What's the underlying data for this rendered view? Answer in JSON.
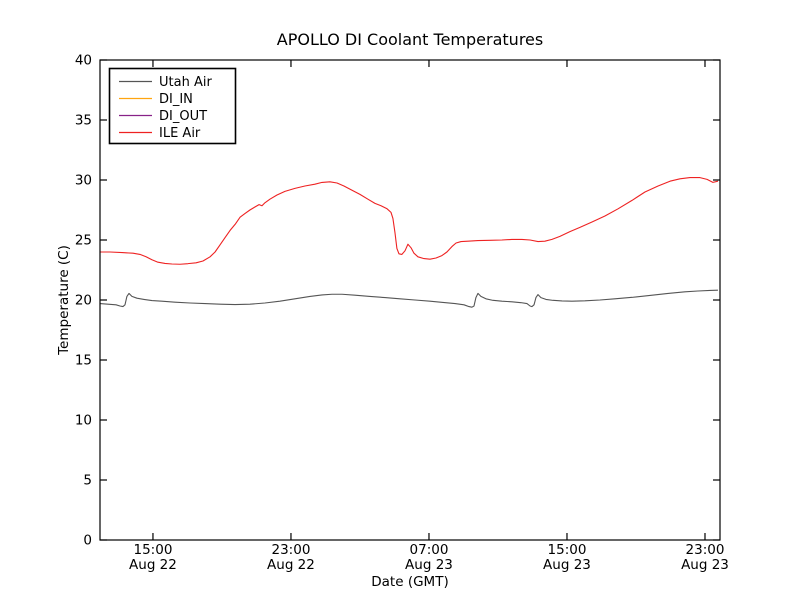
{
  "chart_data": {
    "type": "line",
    "title": "APOLLO DI Coolant Temperatures",
    "xlabel": "Date (GMT)",
    "ylabel": "Temperature (C)",
    "ylim": [
      0,
      40
    ],
    "xlim_hours_from_aug22_0000": [
      11.93,
      47.87
    ],
    "grid": false,
    "yticks": [
      0,
      5,
      10,
      15,
      20,
      25,
      30,
      35,
      40
    ],
    "xticks": [
      {
        "hour": 15,
        "time": "15:00",
        "date": "Aug 22"
      },
      {
        "hour": 23,
        "time": "23:00",
        "date": "Aug 22"
      },
      {
        "hour": 31,
        "time": "07:00",
        "date": "Aug 23"
      },
      {
        "hour": 39,
        "time": "15:00",
        "date": "Aug 23"
      },
      {
        "hour": 47,
        "time": "23:00",
        "date": "Aug 23"
      }
    ],
    "legend": {
      "position": "upper-left",
      "entries": [
        {
          "name": "Utah Air",
          "color": "#555555"
        },
        {
          "name": "DI_IN",
          "color": "#ffa510"
        },
        {
          "name": "DI_OUT",
          "color": "#882288"
        },
        {
          "name": "ILE Air",
          "color": "#ee2222"
        }
      ]
    },
    "series": [
      {
        "name": "Utah Air",
        "color": "#555555",
        "points": [
          [
            11.93,
            19.7
          ],
          [
            12.39,
            19.65
          ],
          [
            12.86,
            19.6
          ],
          [
            13.09,
            19.5
          ],
          [
            13.26,
            19.45
          ],
          [
            13.38,
            19.6
          ],
          [
            13.49,
            20.3
          ],
          [
            13.61,
            20.55
          ],
          [
            13.78,
            20.3
          ],
          [
            14.07,
            20.15
          ],
          [
            14.48,
            20.05
          ],
          [
            14.94,
            19.95
          ],
          [
            15.52,
            19.9
          ],
          [
            16.28,
            19.82
          ],
          [
            17.15,
            19.75
          ],
          [
            18.01,
            19.7
          ],
          [
            18.89,
            19.65
          ],
          [
            19.76,
            19.62
          ],
          [
            20.62,
            19.65
          ],
          [
            21.49,
            19.75
          ],
          [
            22.36,
            19.9
          ],
          [
            23.23,
            20.1
          ],
          [
            24.1,
            20.3
          ],
          [
            24.8,
            20.42
          ],
          [
            25.38,
            20.48
          ],
          [
            25.96,
            20.48
          ],
          [
            26.71,
            20.4
          ],
          [
            27.58,
            20.3
          ],
          [
            28.45,
            20.2
          ],
          [
            29.32,
            20.1
          ],
          [
            30.19,
            20.0
          ],
          [
            31.06,
            19.9
          ],
          [
            31.81,
            19.8
          ],
          [
            32.51,
            19.7
          ],
          [
            33.03,
            19.6
          ],
          [
            33.32,
            19.45
          ],
          [
            33.49,
            19.4
          ],
          [
            33.61,
            19.5
          ],
          [
            33.72,
            20.2
          ],
          [
            33.84,
            20.55
          ],
          [
            34.01,
            20.3
          ],
          [
            34.3,
            20.1
          ],
          [
            34.71,
            19.97
          ],
          [
            35.23,
            19.9
          ],
          [
            35.81,
            19.85
          ],
          [
            36.33,
            19.78
          ],
          [
            36.68,
            19.7
          ],
          [
            36.86,
            19.5
          ],
          [
            36.97,
            19.45
          ],
          [
            37.09,
            19.6
          ],
          [
            37.2,
            20.2
          ],
          [
            37.32,
            20.45
          ],
          [
            37.49,
            20.2
          ],
          [
            37.78,
            20.05
          ],
          [
            38.19,
            19.97
          ],
          [
            38.71,
            19.92
          ],
          [
            39.29,
            19.9
          ],
          [
            40.04,
            19.93
          ],
          [
            40.91,
            20.0
          ],
          [
            41.78,
            20.1
          ],
          [
            42.77,
            20.22
          ],
          [
            43.81,
            20.38
          ],
          [
            44.86,
            20.55
          ],
          [
            45.84,
            20.68
          ],
          [
            46.59,
            20.75
          ],
          [
            47.29,
            20.8
          ],
          [
            47.75,
            20.82
          ]
        ]
      },
      {
        "name": "DI_IN",
        "color": "#ffa510",
        "points": [
          [
            11.93,
            0
          ],
          [
            47.87,
            0
          ]
        ]
      },
      {
        "name": "DI_OUT",
        "color": "#882288",
        "points": [
          [
            11.93,
            0
          ],
          [
            47.87,
            0
          ]
        ]
      },
      {
        "name": "ILE Air",
        "color": "#ee2222",
        "points": [
          [
            11.93,
            24.0
          ],
          [
            12.51,
            24.0
          ],
          [
            13.21,
            23.95
          ],
          [
            13.84,
            23.9
          ],
          [
            14.25,
            23.8
          ],
          [
            14.6,
            23.6
          ],
          [
            14.94,
            23.35
          ],
          [
            15.29,
            23.15
          ],
          [
            15.7,
            23.05
          ],
          [
            16.1,
            23.0
          ],
          [
            16.57,
            22.98
          ],
          [
            17.03,
            23.03
          ],
          [
            17.5,
            23.1
          ],
          [
            17.9,
            23.25
          ],
          [
            18.31,
            23.6
          ],
          [
            18.6,
            24.0
          ],
          [
            18.89,
            24.6
          ],
          [
            19.18,
            25.2
          ],
          [
            19.47,
            25.8
          ],
          [
            19.76,
            26.3
          ],
          [
            20.05,
            26.9
          ],
          [
            20.33,
            27.2
          ],
          [
            20.62,
            27.5
          ],
          [
            20.91,
            27.75
          ],
          [
            21.15,
            27.95
          ],
          [
            21.32,
            27.85
          ],
          [
            21.49,
            28.1
          ],
          [
            21.78,
            28.4
          ],
          [
            22.19,
            28.75
          ],
          [
            22.65,
            29.05
          ],
          [
            23.23,
            29.3
          ],
          [
            23.81,
            29.5
          ],
          [
            24.39,
            29.65
          ],
          [
            24.8,
            29.8
          ],
          [
            25.26,
            29.85
          ],
          [
            25.67,
            29.75
          ],
          [
            26.07,
            29.5
          ],
          [
            26.54,
            29.15
          ],
          [
            27.0,
            28.8
          ],
          [
            27.46,
            28.4
          ],
          [
            27.87,
            28.05
          ],
          [
            28.22,
            27.85
          ],
          [
            28.57,
            27.6
          ],
          [
            28.8,
            27.3
          ],
          [
            28.91,
            26.8
          ],
          [
            29.03,
            25.6
          ],
          [
            29.14,
            24.3
          ],
          [
            29.26,
            23.85
          ],
          [
            29.43,
            23.8
          ],
          [
            29.61,
            24.1
          ],
          [
            29.78,
            24.65
          ],
          [
            29.96,
            24.35
          ],
          [
            30.13,
            23.9
          ],
          [
            30.36,
            23.6
          ],
          [
            30.71,
            23.45
          ],
          [
            31.06,
            23.4
          ],
          [
            31.41,
            23.5
          ],
          [
            31.75,
            23.7
          ],
          [
            32.04,
            24.0
          ],
          [
            32.33,
            24.45
          ],
          [
            32.57,
            24.75
          ],
          [
            32.86,
            24.87
          ],
          [
            33.26,
            24.9
          ],
          [
            33.84,
            24.95
          ],
          [
            34.54,
            24.97
          ],
          [
            35.23,
            25.0
          ],
          [
            35.81,
            25.05
          ],
          [
            36.39,
            25.05
          ],
          [
            36.86,
            25.0
          ],
          [
            37.32,
            24.87
          ],
          [
            37.72,
            24.9
          ],
          [
            38.13,
            25.05
          ],
          [
            38.59,
            25.3
          ],
          [
            39.17,
            25.7
          ],
          [
            39.75,
            26.05
          ],
          [
            40.45,
            26.5
          ],
          [
            41.2,
            27.0
          ],
          [
            41.96,
            27.6
          ],
          [
            42.77,
            28.3
          ],
          [
            43.52,
            29.0
          ],
          [
            44.28,
            29.5
          ],
          [
            44.97,
            29.9
          ],
          [
            45.55,
            30.1
          ],
          [
            46.13,
            30.2
          ],
          [
            46.71,
            30.2
          ],
          [
            47.12,
            30.05
          ],
          [
            47.46,
            29.8
          ],
          [
            47.75,
            29.9
          ]
        ]
      }
    ]
  }
}
